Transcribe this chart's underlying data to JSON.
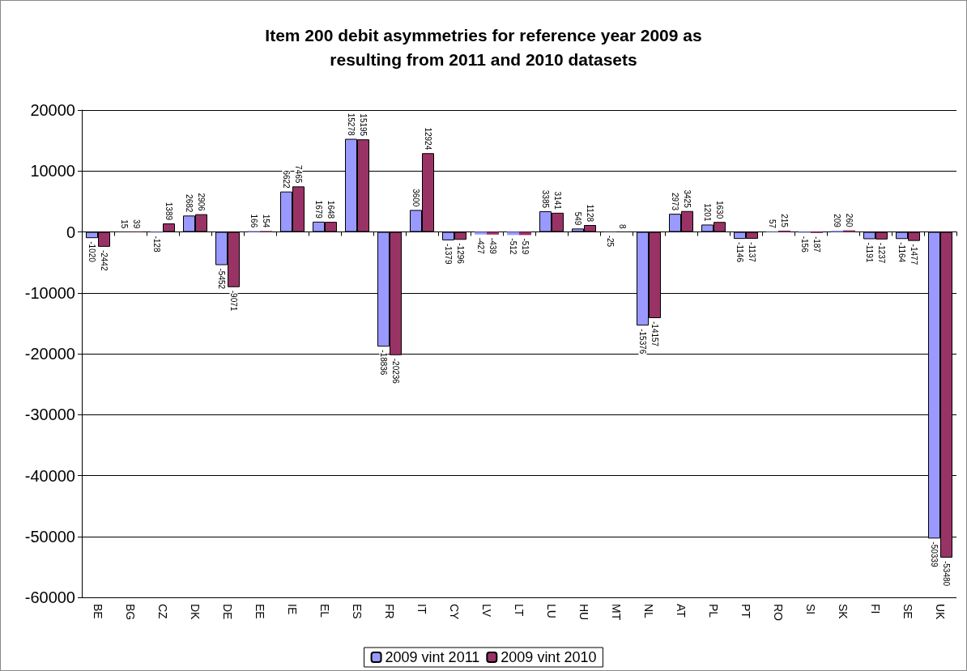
{
  "chart_data": {
    "type": "bar",
    "title": "Item 200 debit asymmetries for reference year 2009 as\nresulting from 2011 and 2010 datasets",
    "categories": [
      "BE",
      "BG",
      "CZ",
      "DK",
      "DE",
      "EE",
      "IE",
      "EL",
      "ES",
      "FR",
      "IT",
      "CY",
      "LV",
      "LT",
      "LU",
      "HU",
      "MT",
      "NL",
      "AT",
      "PL",
      "PT",
      "RO",
      "SI",
      "SK",
      "FI",
      "SE",
      "UK"
    ],
    "series": [
      {
        "name": "2009 vint 2011",
        "color": "#9999ff",
        "values": [
          -1020,
          15,
          -128,
          2682,
          -5452,
          166,
          6622,
          1679,
          15278,
          -18836,
          3600,
          -1379,
          -427,
          -512,
          3385,
          549,
          -25,
          -15376,
          2973,
          1201,
          -1146,
          57,
          -156,
          209,
          -1191,
          -1164,
          -50339
        ]
      },
      {
        "name": "2009 vint 2010",
        "color": "#993366",
        "values": [
          -2442,
          39,
          1389,
          2906,
          -9071,
          154,
          7465,
          1648,
          15195,
          -20236,
          12924,
          -1296,
          -439,
          -519,
          3141,
          1128,
          8,
          -14157,
          3425,
          1630,
          -1137,
          215,
          -187,
          260,
          -1237,
          -1477,
          -53480
        ]
      }
    ],
    "ylim": [
      -60000,
      20000
    ],
    "yticks": [
      -60000,
      -50000,
      -40000,
      -30000,
      -20000,
      -10000,
      0,
      10000,
      20000
    ],
    "grid": "y",
    "legend": "bottom",
    "data_labels": true
  }
}
